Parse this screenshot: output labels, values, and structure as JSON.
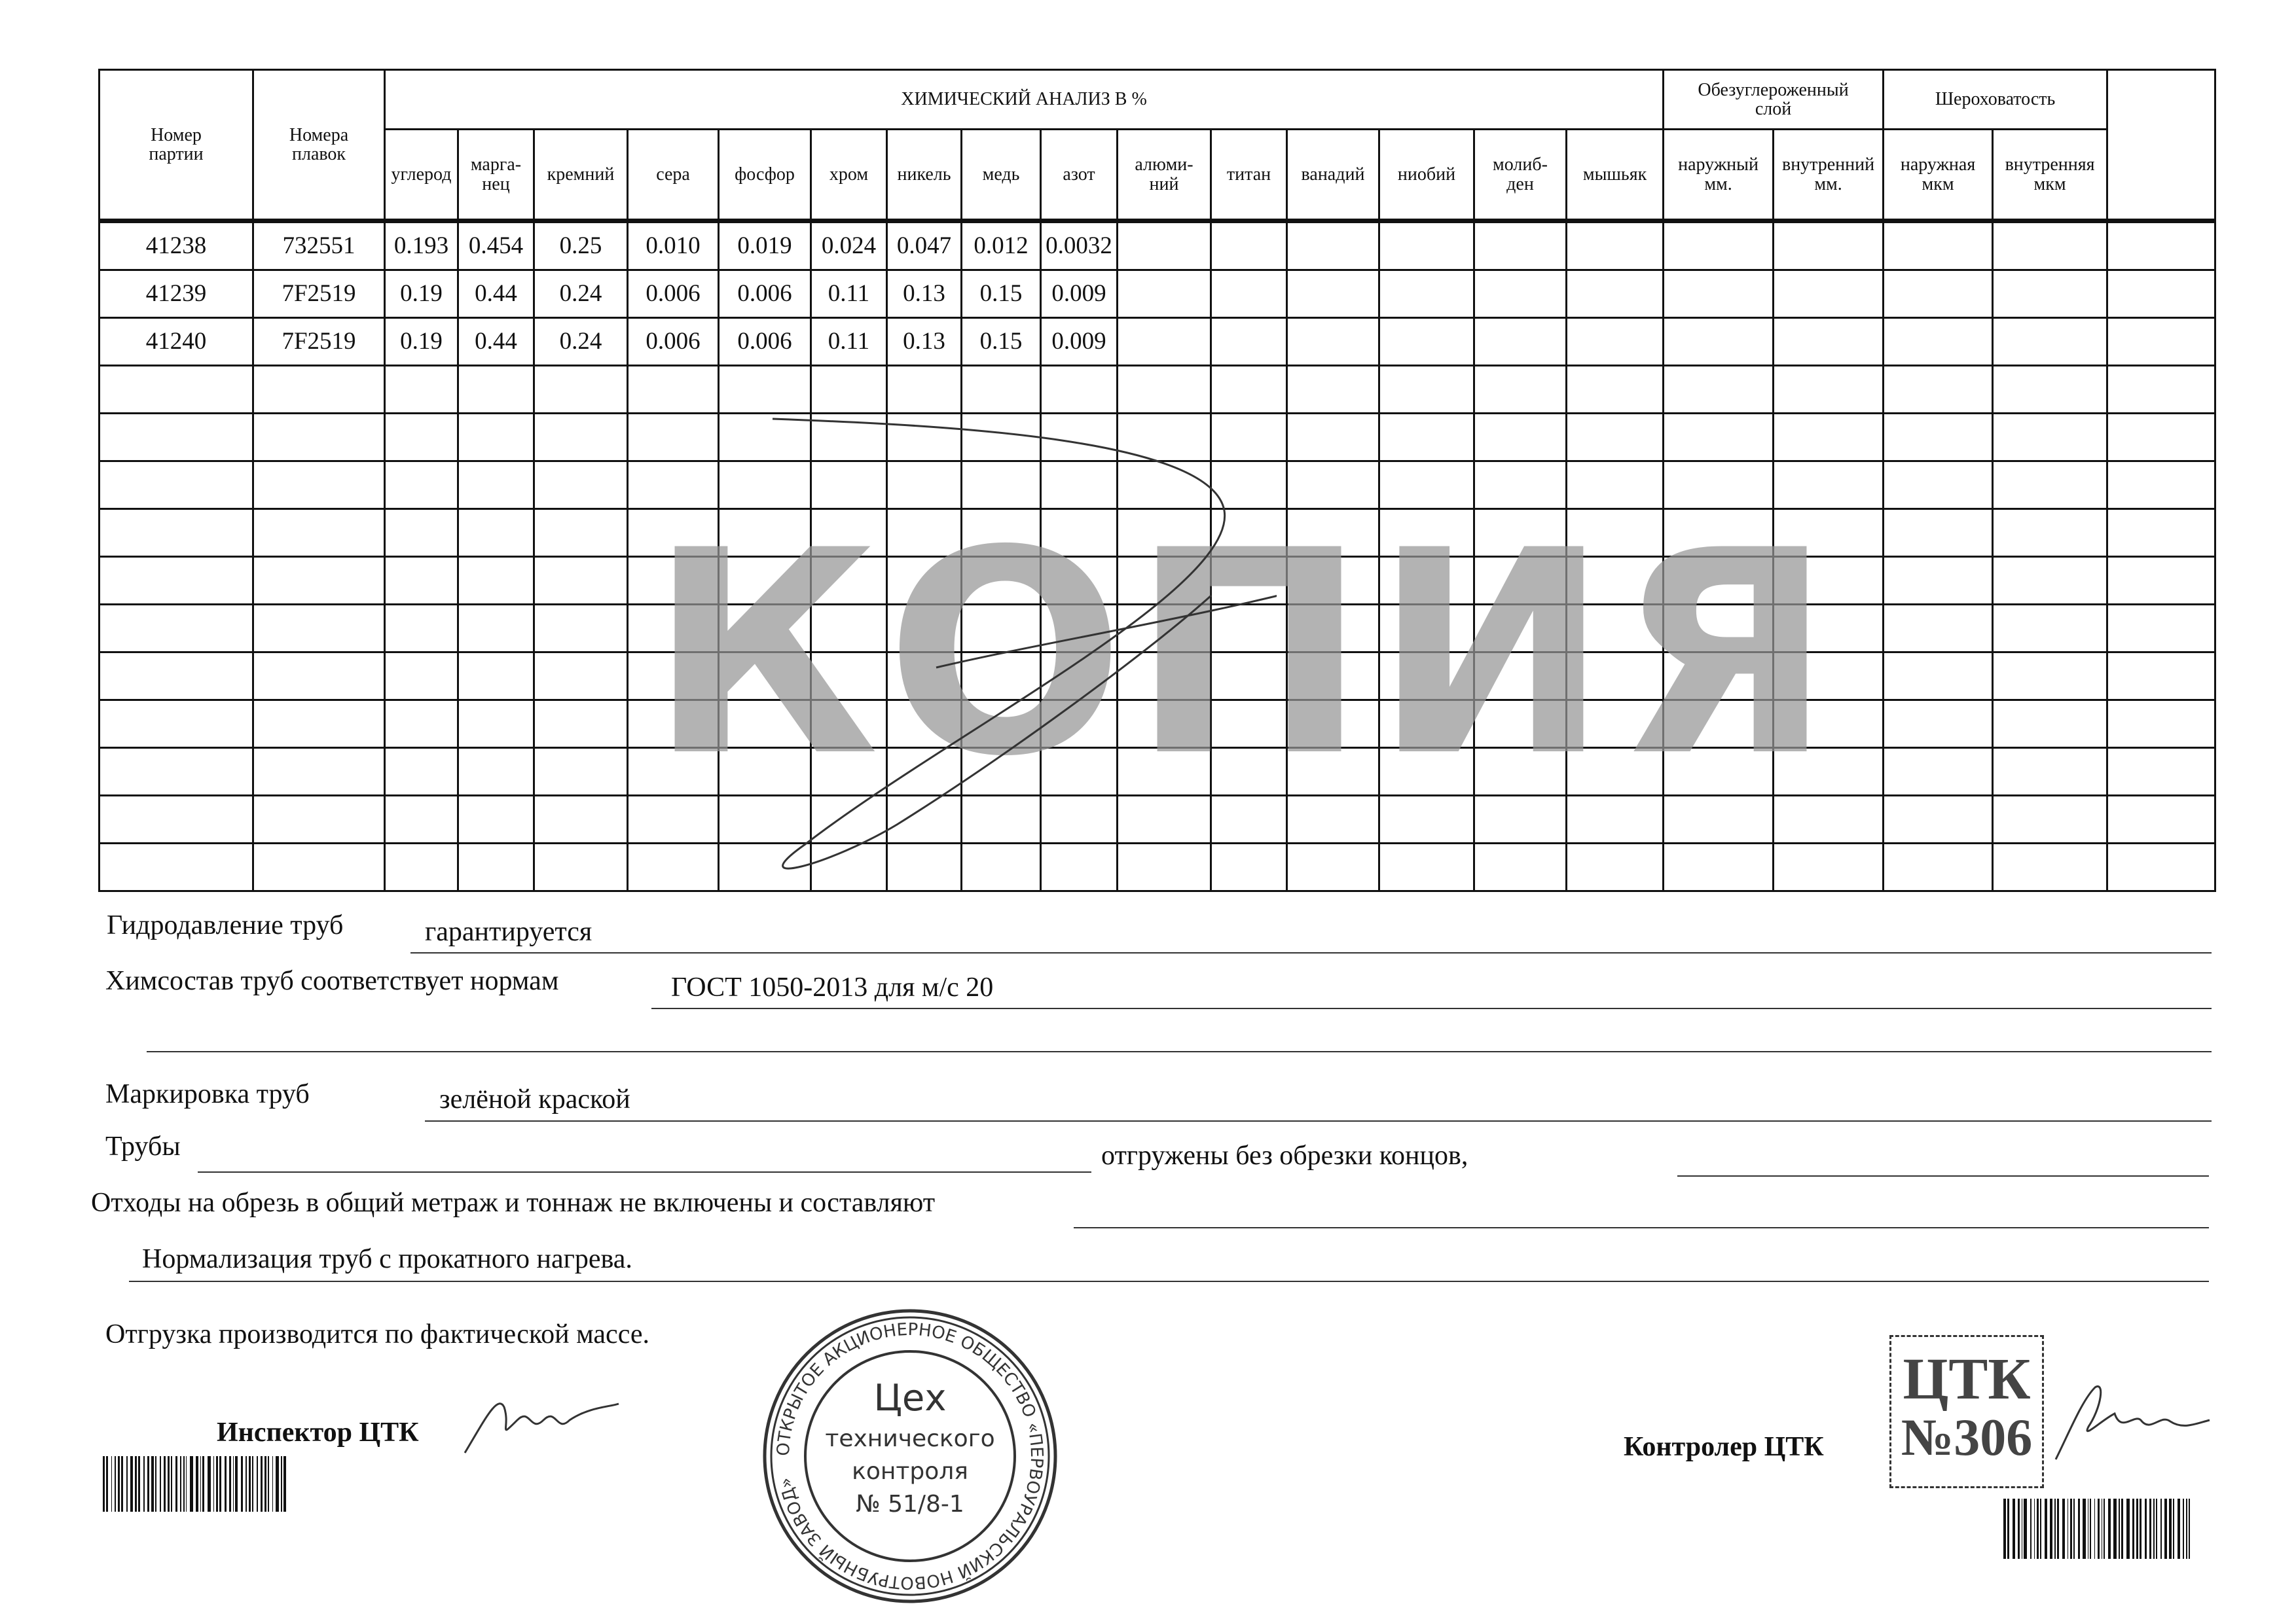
{
  "table": {
    "headers": {
      "batch_no": "Номер\nпартии",
      "heat_nos": "Номера\nплавок",
      "chem_group": "ХИМИЧЕСКИЙ АНАЛИЗ  В  %",
      "decarb_group": "Обезуглероженный\nслой",
      "rough_group": "Шероховатость",
      "elements": [
        "углерод",
        "марга-\nнец",
        "кремний",
        "сера",
        "фосфор",
        "хром",
        "никель",
        "медь",
        "азот",
        "алюми-\nний",
        "титан",
        "ванадий",
        "ниобий",
        "молиб-\nден",
        "мышьяк"
      ],
      "decarb": [
        "наружный\nмм.",
        "внутренний\nмм."
      ],
      "rough": [
        "наружная\nмкм",
        "внутренняя\nмкм"
      ]
    },
    "rows": [
      [
        "41238",
        "732551",
        "0.193",
        "0.454",
        "0.25",
        "0.010",
        "0.019",
        "0.024",
        "0.047",
        "0.012",
        "0.0032"
      ],
      [
        "41239",
        "7F2519",
        "0.19",
        "0.44",
        "0.24",
        "0.006",
        "0.006",
        "0.11",
        "0.13",
        "0.15",
        "0.009"
      ],
      [
        "41240",
        "7F2519",
        "0.19",
        "0.44",
        "0.24",
        "0.006",
        "0.006",
        "0.11",
        "0.13",
        "0.15",
        "0.009"
      ]
    ]
  },
  "form": {
    "hydro_label": "Гидродавление труб",
    "hydro_value": "гарантируется",
    "chem_label": "Химсостав труб соответствует нормам",
    "chem_value": "ГОСТ 1050-2013 для м/с 20",
    "marking_label": "Маркировка труб",
    "marking_value": "зелёной краской",
    "pipes_label": "Трубы",
    "shipped_text": "отгружены без обрезки концов,",
    "waste_text": "Отходы на обрезь в общий метраж и тоннаж не включены и составляют",
    "normalization_text": "Нормализация труб с прокатного нагрева.",
    "shipping_text": "Отгрузка производится по фактической массе.",
    "inspector_label": "Инспектор ЦТК",
    "controller_label": "Контролер ЦТК"
  },
  "watermark": "КОПИЯ",
  "round_stamp": {
    "ring_text": "ОТКРЫТОЕ АКЦИОНЕРНОЕ ОБЩЕСТВО «ПЕРВОУРАЛЬСКИЙ НОВОТРУБНЫЙ ЗАВОД»",
    "line1": "Цех",
    "line2": "технического",
    "line3": "контроля",
    "line4": "№ 51/8-1"
  },
  "square_stamp": {
    "line1": "ЦТК",
    "line2": "№306"
  },
  "colors": {
    "ink": "#111111",
    "watermark": "#969696",
    "stamp": "#333333"
  }
}
